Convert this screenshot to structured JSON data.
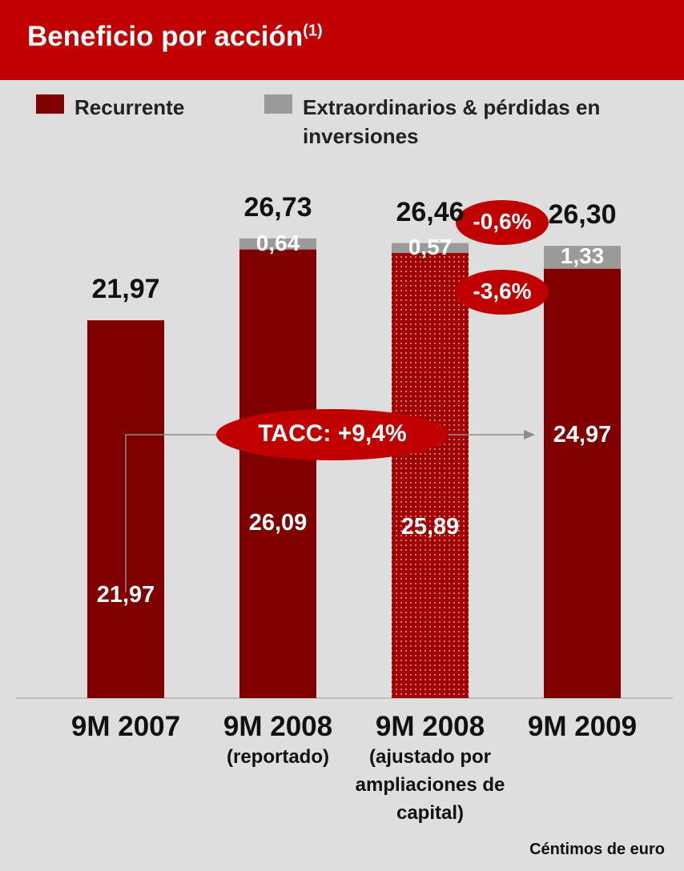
{
  "chart_data": {
    "type": "stacked_bar",
    "title": "Beneficio por acción",
    "title_note": "(1)",
    "categories": [
      "9M 2007",
      "9M 2008",
      "9M 2008",
      "9M 2009"
    ],
    "category_notes": [
      null,
      "(reportado)",
      "(ajustado por ampliaciones de capital)",
      null
    ],
    "dotted": [
      false,
      false,
      true,
      false
    ],
    "series": [
      {
        "name": "Recurrente",
        "color": "#800000",
        "values": [
          21.97,
          26.09,
          25.89,
          24.97
        ],
        "value_labels": [
          "21,97",
          "26,09",
          "25,89",
          "24,97"
        ]
      },
      {
        "name": "Extraordinarios & pérdidas en inversiones",
        "color": "#9a9a9a",
        "values": [
          null,
          0.64,
          0.57,
          1.33
        ],
        "value_labels": [
          null,
          "0,64",
          "0,57",
          "1,33"
        ]
      }
    ],
    "totals": [
      21.97,
      26.73,
      26.46,
      26.3
    ],
    "total_labels": [
      "21,97",
      "26,73",
      "26,46",
      "26,30"
    ],
    "annotations": [
      "-0,6%",
      "-3,6%",
      "TACC: +9,4%"
    ],
    "unit_note": "Céntimos de euro"
  }
}
